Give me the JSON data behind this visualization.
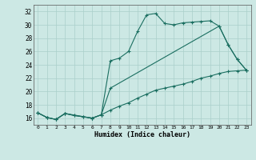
{
  "xlabel": "Humidex (Indice chaleur)",
  "bg_color": "#cce8e4",
  "grid_color": "#aacfca",
  "line_color": "#1a6e60",
  "xlim": [
    -0.5,
    23.5
  ],
  "ylim": [
    15.0,
    33.0
  ],
  "yticks": [
    16,
    18,
    20,
    22,
    24,
    26,
    28,
    30,
    32
  ],
  "xticks": [
    0,
    1,
    2,
    3,
    4,
    5,
    6,
    7,
    8,
    9,
    10,
    11,
    12,
    13,
    14,
    15,
    16,
    17,
    18,
    19,
    20,
    21,
    22,
    23
  ],
  "line1_x": [
    0,
    1,
    2,
    3,
    4,
    5,
    6,
    7,
    8,
    9,
    10,
    11,
    12,
    13,
    14,
    15,
    16,
    17,
    18,
    19,
    20,
    21,
    22,
    23
  ],
  "line1_y": [
    16.8,
    16.1,
    15.8,
    16.7,
    16.4,
    16.2,
    16.0,
    16.5,
    24.6,
    25.0,
    26.0,
    29.0,
    31.5,
    31.7,
    30.2,
    30.0,
    30.3,
    30.4,
    30.5,
    30.6,
    29.8,
    27.0,
    24.8,
    23.2
  ],
  "line2_x": [
    0,
    1,
    2,
    3,
    4,
    5,
    6,
    7,
    8,
    9,
    10,
    11,
    12,
    13,
    14,
    15,
    16,
    17,
    18,
    19,
    20,
    21,
    22,
    23
  ],
  "line2_y": [
    16.8,
    16.1,
    15.8,
    16.7,
    16.4,
    16.2,
    16.0,
    16.5,
    17.2,
    17.8,
    18.3,
    19.0,
    19.6,
    20.2,
    20.5,
    20.8,
    21.1,
    21.5,
    22.0,
    22.3,
    22.7,
    23.0,
    23.1,
    23.2
  ],
  "line3_x": [
    0,
    1,
    2,
    3,
    6,
    7,
    8,
    20,
    21,
    22,
    23
  ],
  "line3_y": [
    16.8,
    16.1,
    15.8,
    16.7,
    16.0,
    16.5,
    20.5,
    29.8,
    27.0,
    24.8,
    23.2
  ]
}
